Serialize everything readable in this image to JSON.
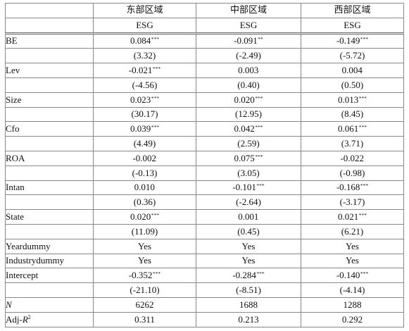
{
  "regions": [
    "东部区域",
    "中部区域",
    "西部区域"
  ],
  "dependent": [
    "ESG",
    "ESG",
    "ESG"
  ],
  "rows": [
    {
      "label": "BE",
      "coef": [
        "0.084",
        "-0.091",
        "-0.149"
      ],
      "stars": [
        "***",
        "**",
        "***"
      ],
      "t": [
        "(3.32)",
        "(-2.49)",
        "(-5.72)"
      ]
    },
    {
      "label": "Lev",
      "coef": [
        "-0.021",
        "0.003",
        "0.004"
      ],
      "stars": [
        "***",
        "",
        ""
      ],
      "t": [
        "(-4.56)",
        "(0.40)",
        "(0.50)"
      ]
    },
    {
      "label": "Size",
      "coef": [
        "0.023",
        "0.020",
        "0.013"
      ],
      "stars": [
        "***",
        "***",
        "***"
      ],
      "t": [
        "(30.17)",
        "(12.95)",
        "(8.45)"
      ]
    },
    {
      "label": "Cfo",
      "coef": [
        "0.039",
        "0.042",
        "0.061"
      ],
      "stars": [
        "***",
        "***",
        "***"
      ],
      "t": [
        "(4.49)",
        "(2.59)",
        "(3.71)"
      ]
    },
    {
      "label": "ROA",
      "coef": [
        "-0.002",
        "0.075",
        "-0.022"
      ],
      "stars": [
        "",
        "***",
        ""
      ],
      "t": [
        "(-0.13)",
        "(3.05)",
        "(-0.98)"
      ]
    },
    {
      "label": "Intan",
      "coef": [
        "0.010",
        "-0.101",
        "-0.168"
      ],
      "stars": [
        "",
        "***",
        "***"
      ],
      "t": [
        "(0.36)",
        "(-2.64)",
        "(-3.17)"
      ]
    },
    {
      "label": "State",
      "coef": [
        "0.020",
        "0.001",
        "0.021"
      ],
      "stars": [
        "***",
        "",
        "***"
      ],
      "t": [
        "(11.09)",
        "(0.45)",
        "(6.21)"
      ]
    }
  ],
  "dummies": [
    {
      "label": "Yeardummy",
      "values": [
        "Yes",
        "Yes",
        "Yes"
      ]
    },
    {
      "label": "Industrydummy",
      "values": [
        "Yes",
        "Yes",
        "Yes"
      ]
    }
  ],
  "intercept": {
    "label": "Intercept",
    "coef": [
      "-0.352",
      "-0.284",
      "-0.140"
    ],
    "stars": [
      "***",
      "***",
      "***"
    ],
    "t": [
      "(-21.10)",
      "(-8.51)",
      "(-4.14)"
    ]
  },
  "n": {
    "label": "N",
    "values": [
      "6262",
      "1688",
      "1288"
    ]
  },
  "adj_r2": {
    "label_prefix": "Adj-",
    "label_var": "R",
    "label_sup": "2",
    "values": [
      "0.311",
      "0.213",
      "0.292"
    ]
  }
}
